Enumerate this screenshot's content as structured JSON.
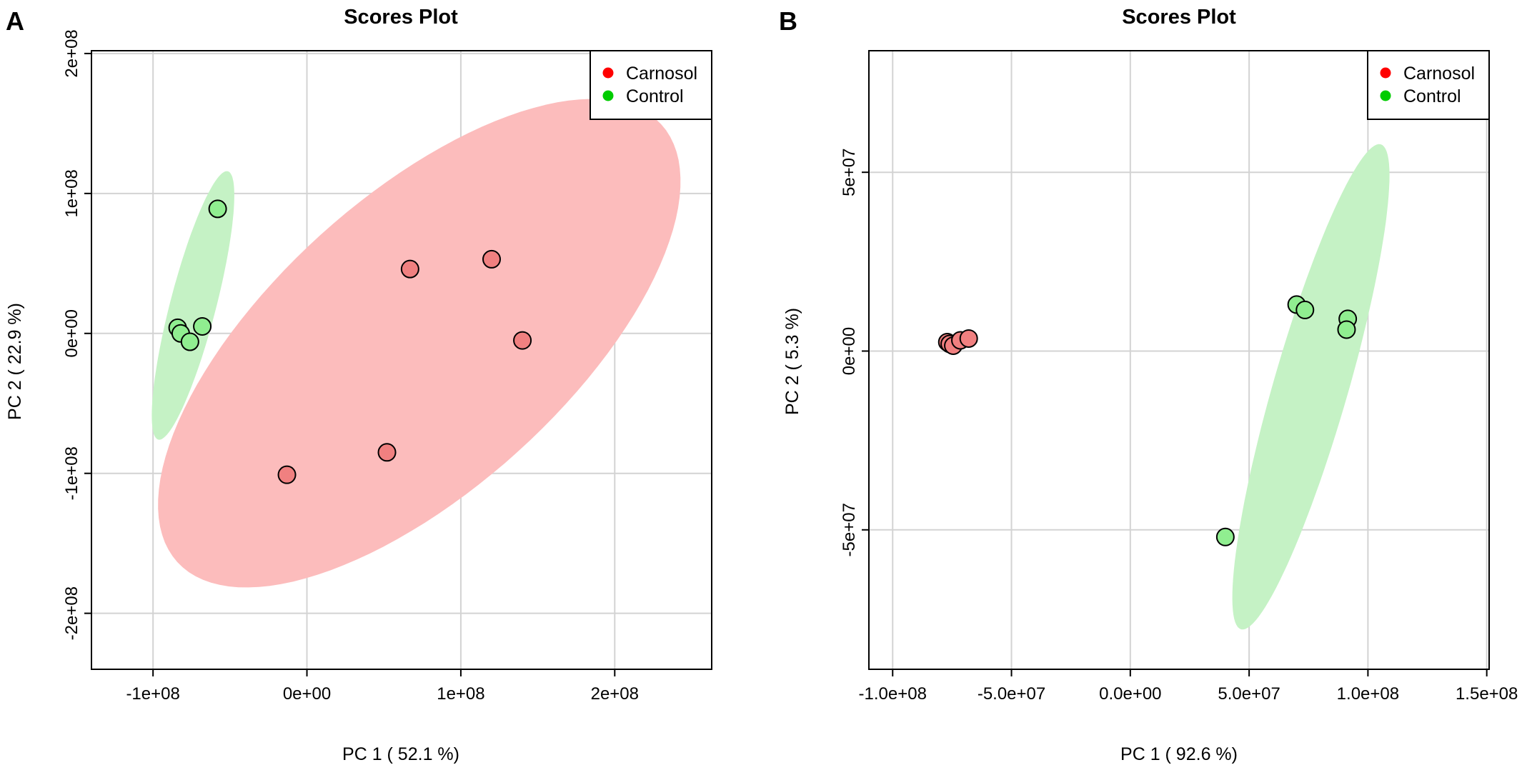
{
  "colors": {
    "Carnosol": "#ff0000",
    "Control": "#00cc00",
    "Carnosol_fill": "#f08080",
    "Control_fill": "#90ee90",
    "Carnosol_ellipse": "#fcbcbc",
    "Control_ellipse": "#c5f2c5",
    "grid": "#d3d3d3"
  },
  "chart_data": [
    {
      "panel": "A",
      "type": "scatter",
      "title": "Scores Plot",
      "xlabel": "PC 1 ( 52.1 %)",
      "ylabel": "PC 2 ( 22.9 %)",
      "xlim": [
        -140000000,
        263000000
      ],
      "ylim": [
        -240000000,
        202000000
      ],
      "xticks": [
        -100000000,
        0,
        100000000,
        200000000
      ],
      "xtick_labels": [
        "-1e+08",
        "0e+00",
        "1e+08",
        "2e+08"
      ],
      "yticks": [
        -200000000,
        -100000000,
        0,
        100000000,
        200000000
      ],
      "ytick_labels": [
        "-2e+08",
        "-1e+08",
        "0e+00",
        "1e+08",
        "2e+08"
      ],
      "legend": [
        "Carnosol",
        "Control"
      ],
      "legend_position": "top-right",
      "series": [
        {
          "name": "Carnosol",
          "points": [
            [
              67000000,
              46000000
            ],
            [
              120000000,
              53000000
            ],
            [
              140000000,
              -5000000
            ],
            [
              52000000,
              -85000000
            ],
            [
              -13000000,
              -101000000
            ]
          ],
          "ellipse": {
            "center": [
              73000000,
              -7000000
            ],
            "semi_major": 222000000,
            "semi_minor": 100000000,
            "angle_deg": 46.2
          }
        },
        {
          "name": "Control",
          "points": [
            [
              -58000000,
              89000000
            ],
            [
              -68000000,
              5000000
            ],
            [
              -84000000,
              4000000
            ],
            [
              -82000000,
              0
            ],
            [
              -76000000,
              -6000000
            ]
          ],
          "ellipse": {
            "center": [
              -74000000,
              20000000
            ],
            "semi_major": 98500000,
            "semi_minor": 15000000,
            "angle_deg": 76.8
          }
        }
      ]
    },
    {
      "panel": "B",
      "type": "scatter",
      "title": "Scores Plot",
      "xlabel": "PC 1 ( 92.6 %)",
      "ylabel": "PC 2 ( 5.3 %)",
      "xlim": [
        -110000000,
        151000000
      ],
      "ylim": [
        -89000000,
        84000000
      ],
      "xticks": [
        -100000000,
        -50000000,
        0,
        50000000,
        100000000,
        150000000
      ],
      "xtick_labels": [
        "-1.0e+08",
        "-5.0e+07",
        "0.0e+00",
        "5.0e+07",
        "1.0e+08",
        "1.5e+08"
      ],
      "yticks": [
        -50000000,
        0,
        50000000
      ],
      "ytick_labels": [
        "-5e+07",
        "0e+00",
        "5e+07"
      ],
      "legend": [
        "Carnosol",
        "Control"
      ],
      "legend_position": "top-right",
      "series": [
        {
          "name": "Carnosol",
          "points": [
            [
              -77000000,
              2500000
            ],
            [
              -76000000,
              2000000
            ],
            [
              -74500000,
              1500000
            ],
            [
              -71500000,
              3000000
            ],
            [
              -68000000,
              3500000
            ]
          ],
          "ellipse": {
            "center": [
              -73500000,
              2500000
            ],
            "semi_major": 5000000,
            "semi_minor": 1200000,
            "angle_deg": 5
          }
        },
        {
          "name": "Control",
          "points": [
            [
              70000000,
              13000000
            ],
            [
              73500000,
              11500000
            ],
            [
              91500000,
              9000000
            ],
            [
              91000000,
              6000000
            ],
            [
              40000000,
              -52000000
            ]
          ],
          "ellipse": {
            "center": [
              76000000,
              -10000000
            ],
            "semi_major": 74000000,
            "semi_minor": 15000000,
            "angle_deg": 66
          }
        }
      ]
    }
  ]
}
